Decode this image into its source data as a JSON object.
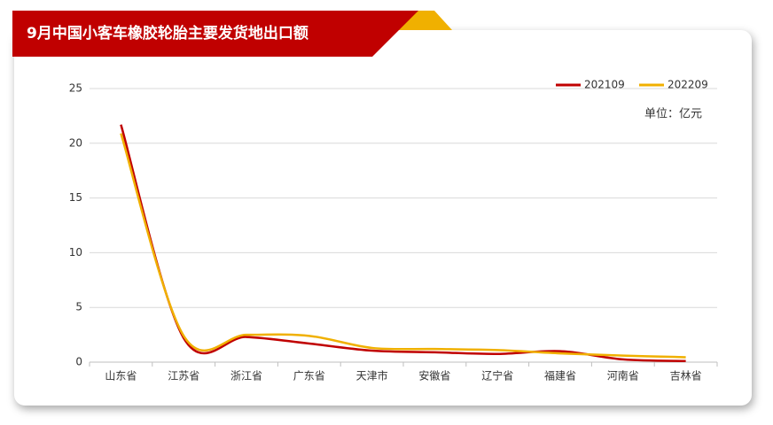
{
  "chart_data": {
    "type": "line",
    "title": "9月中国小客车橡胶轮胎主要发货地出口额",
    "unit_label": "单位：亿元",
    "categories": [
      "山东省",
      "江苏省",
      "浙江省",
      "广东省",
      "天津市",
      "安徽省",
      "辽宁省",
      "福建省",
      "河南省",
      "吉林省"
    ],
    "series": [
      {
        "name": "202109",
        "color": "#c00000",
        "values": [
          21.7,
          2.2,
          2.3,
          1.7,
          1.05,
          0.9,
          0.75,
          1.0,
          0.25,
          0.1
        ]
      },
      {
        "name": "202209",
        "color": "#f0b000",
        "values": [
          20.9,
          2.4,
          2.5,
          2.4,
          1.3,
          1.2,
          1.1,
          0.8,
          0.6,
          0.45
        ]
      }
    ],
    "ylim": [
      0,
      25
    ],
    "yticks": [
      0,
      5,
      10,
      15,
      20,
      25
    ],
    "grid": true,
    "legend": "top-right"
  }
}
